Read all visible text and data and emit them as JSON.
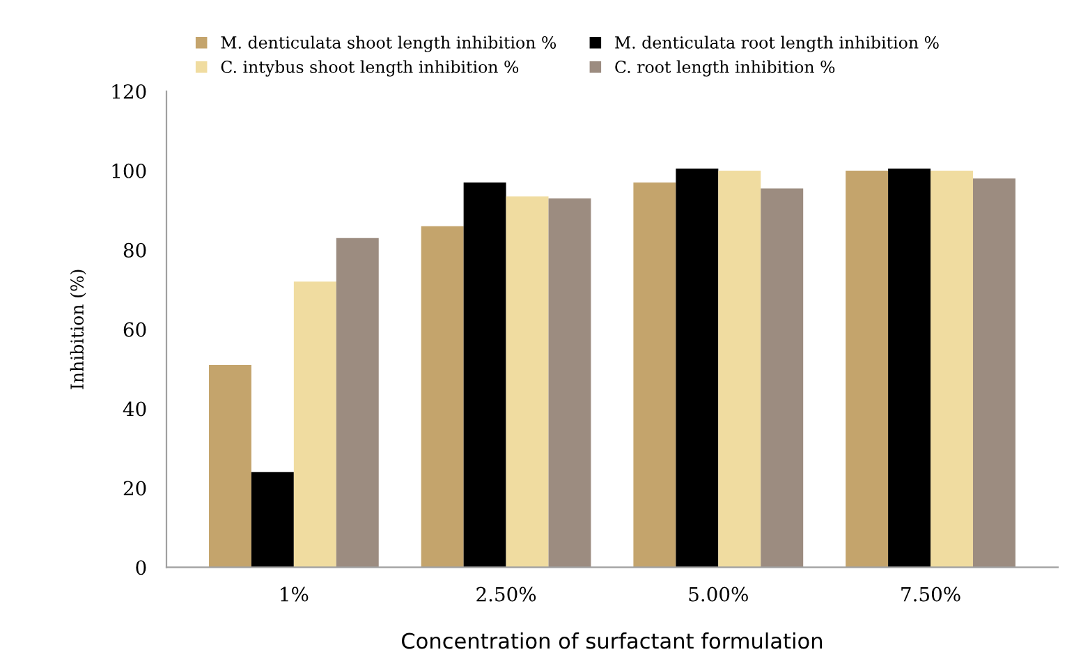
{
  "chart_data": {
    "type": "bar",
    "xlabel": "Concentration of surfactant formulation",
    "ylabel": "Inhibition (%)",
    "categories": [
      "1%",
      "2.50%",
      "5.00%",
      "7.50%"
    ],
    "series": [
      {
        "name": "M. denticulata shoot length inhibition %",
        "color": "#c4a46c",
        "values": [
          51,
          86,
          97,
          100
        ]
      },
      {
        "name": "M. denticulata root length inhibition %",
        "color": "#000000",
        "values": [
          24,
          97,
          100.5,
          100.5
        ]
      },
      {
        "name": "C. intybus shoot length inhibition %",
        "color": "#f0dca0",
        "values": [
          72,
          93.5,
          100,
          100
        ]
      },
      {
        "name": "C. root length inhibition %",
        "color": "#9c8c80",
        "values": [
          83,
          93,
          95.5,
          98
        ]
      }
    ],
    "ylim": [
      0,
      120
    ],
    "yticks": [
      0,
      20,
      40,
      60,
      80,
      100,
      120
    ],
    "grid": false,
    "legend": "top"
  }
}
